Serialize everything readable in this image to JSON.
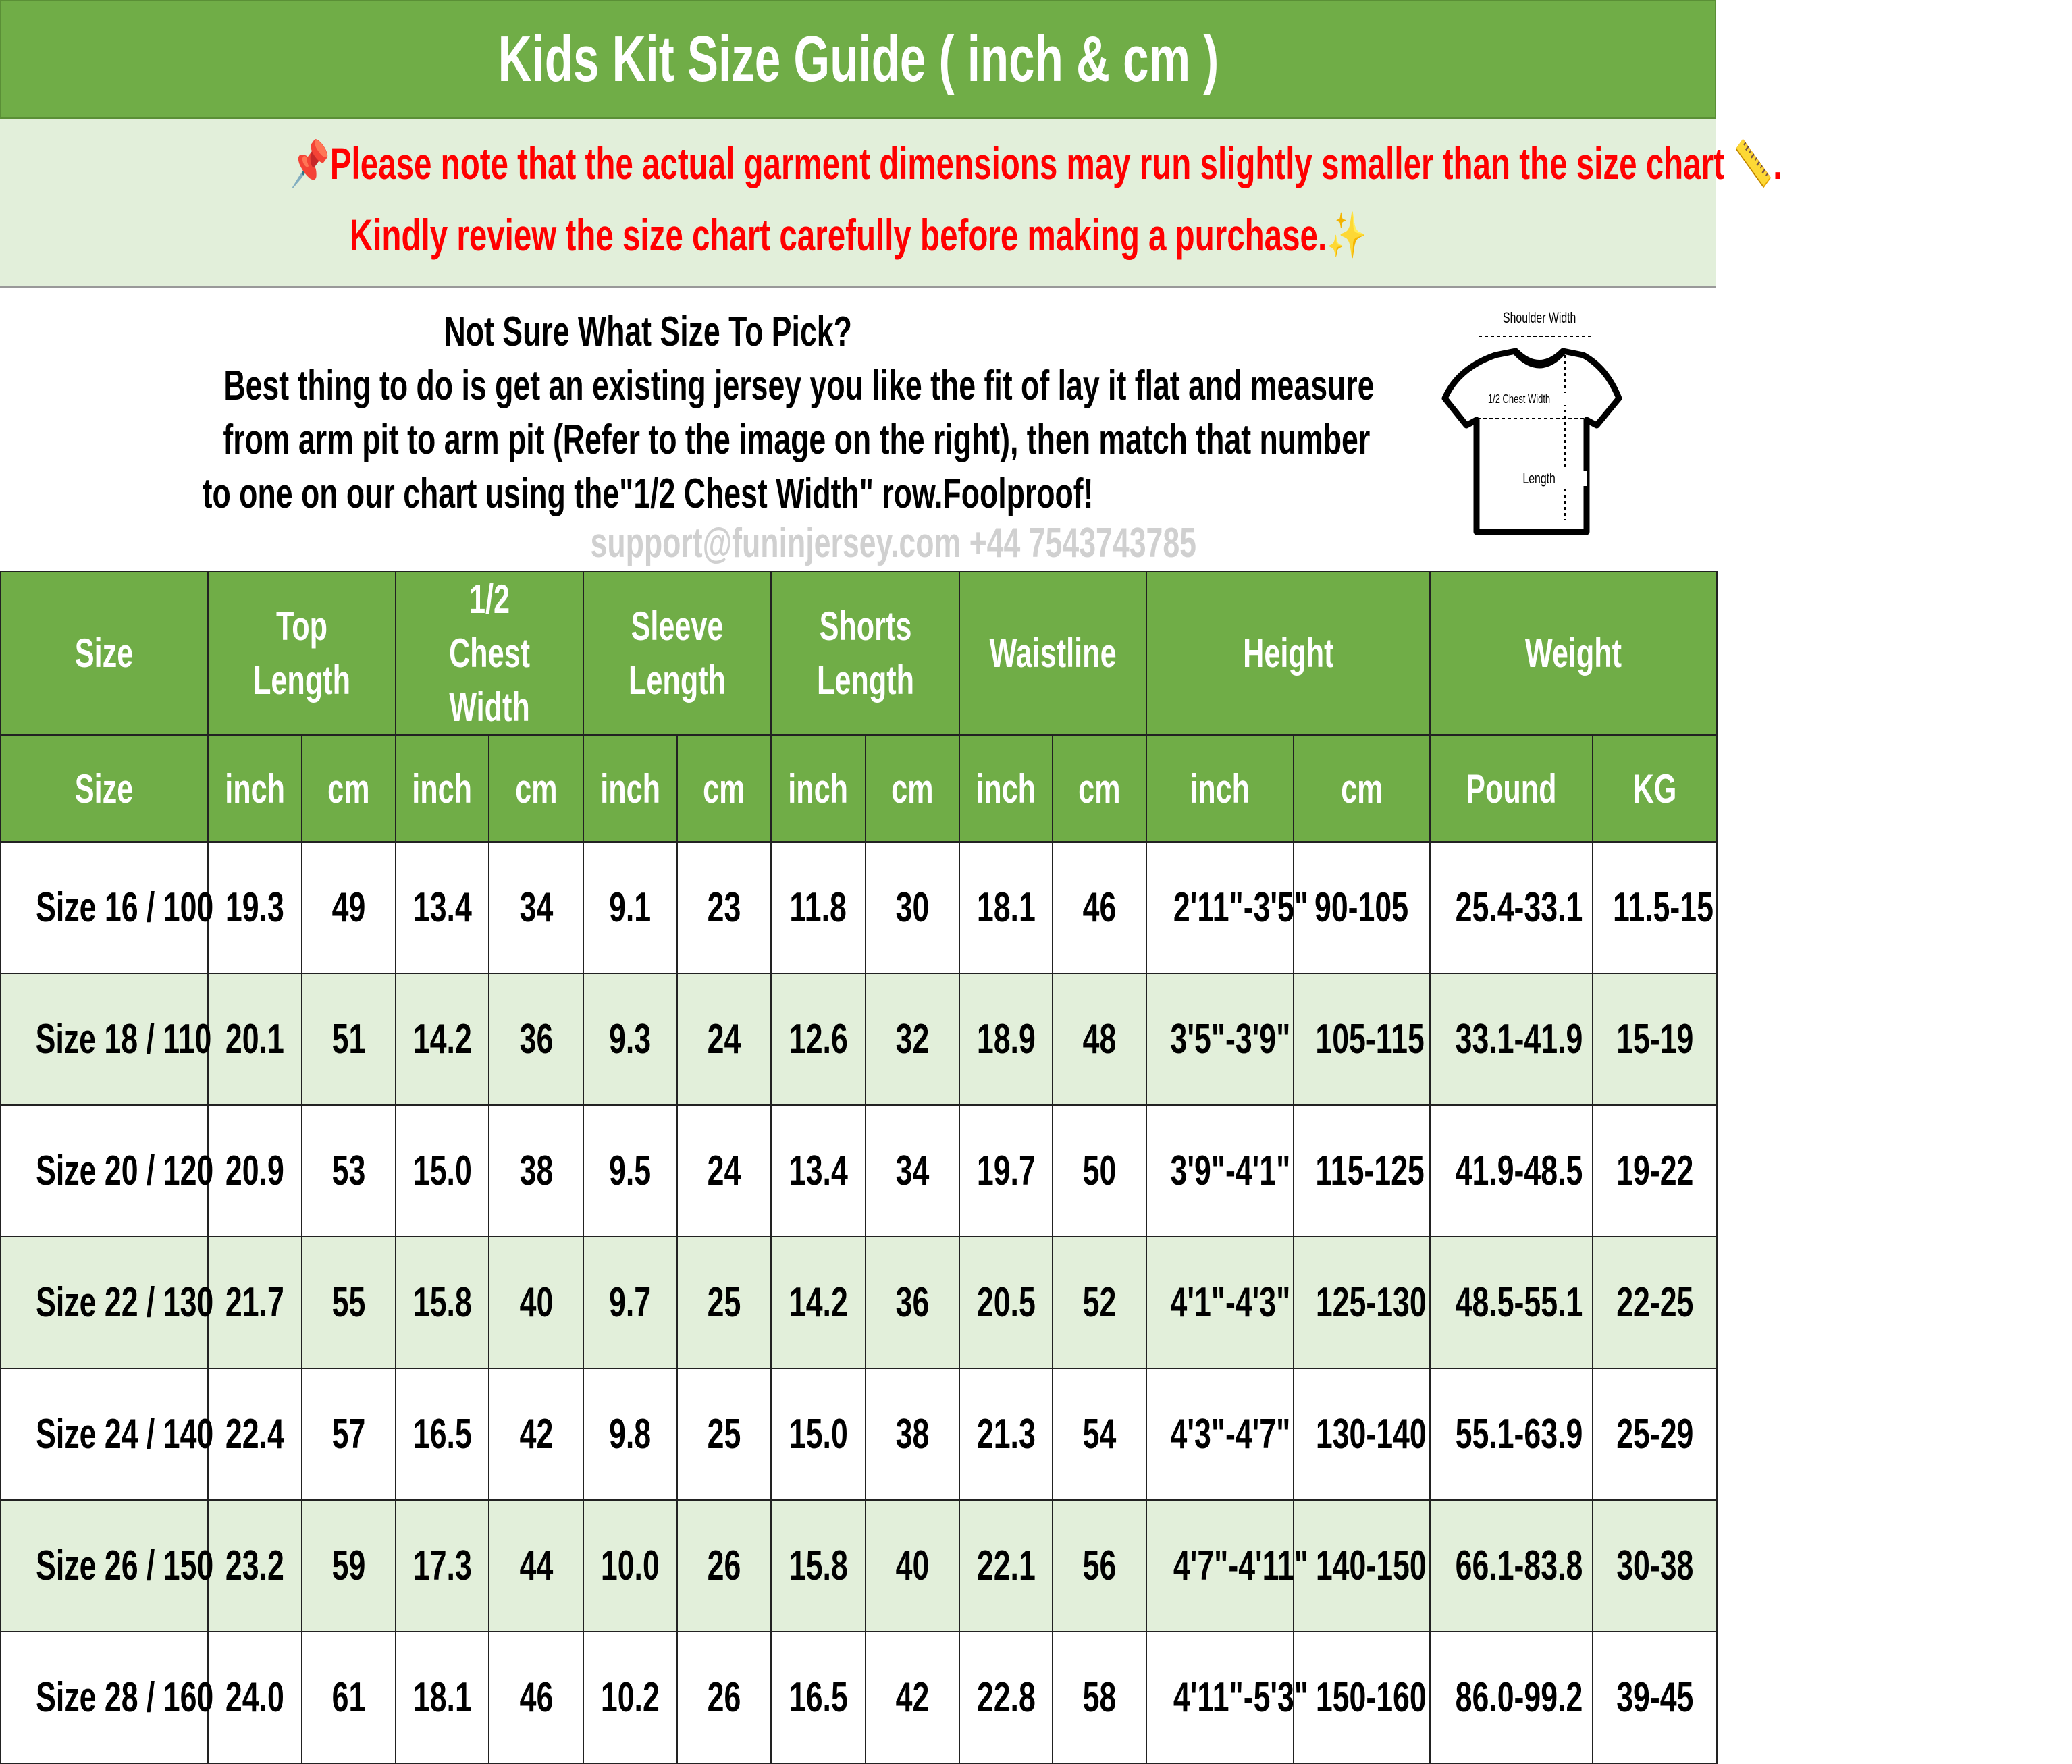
{
  "title": "Kids Kit Size Guide ( inch & cm )",
  "notice": {
    "line1": "Please note that the actual garment dimensions may run slightly smaller than the size chart",
    "line1_end": ".",
    "line2": "Kindly review the size chart carefully before making a purchase.",
    "icons": [
      "pushpin-icon",
      "ruler-icon",
      "sparkles-icon"
    ]
  },
  "info": {
    "heading": "Not Sure What Size To Pick?",
    "line1": "Best thing to do is get an existing jersey you like the fit of lay it flat and measure",
    "line2": "from arm pit to arm pit (Refer to the image on the right), then match that number",
    "line3": "to one on our chart using the\"1/2 Chest Width\" row.Foolproof!"
  },
  "diagram": {
    "shoulder": "Shoulder Width",
    "chest": "1/2 Chest Width",
    "length": "Length"
  },
  "watermark": "support@funinjersey.com +44 7543743785",
  "colors": {
    "header_green": "#70ad47",
    "alt_row": "#e2efda",
    "notice_red": "#ff0000"
  },
  "table": {
    "groups": [
      {
        "label": "Size",
        "span": 1
      },
      {
        "label": "Top Length",
        "span": 2
      },
      {
        "label": "1/2 Chest Width",
        "span": 2
      },
      {
        "label": "Sleeve Length",
        "span": 2
      },
      {
        "label": "Shorts Length",
        "span": 2
      },
      {
        "label": "Waistline",
        "span": 2
      },
      {
        "label": "Height",
        "span": 2
      },
      {
        "label": "Weight",
        "span": 2
      }
    ],
    "units": [
      "Size",
      "inch",
      "cm",
      "inch",
      "cm",
      "inch",
      "cm",
      "inch",
      "cm",
      "inch",
      "cm",
      "inch",
      "cm",
      "Pound",
      "KG"
    ],
    "rows": [
      [
        "Size 16 / 100",
        "19.3",
        "49",
        "13.4",
        "34",
        "9.1",
        "23",
        "11.8",
        "30",
        "18.1",
        "46",
        "2'11\"-3'5\"",
        "90-105",
        "25.4-33.1",
        "11.5-15"
      ],
      [
        "Size 18 / 110",
        "20.1",
        "51",
        "14.2",
        "36",
        "9.3",
        "24",
        "12.6",
        "32",
        "18.9",
        "48",
        "3'5\"-3'9\"",
        "105-115",
        "33.1-41.9",
        "15-19"
      ],
      [
        "Size 20 / 120",
        "20.9",
        "53",
        "15.0",
        "38",
        "9.5",
        "24",
        "13.4",
        "34",
        "19.7",
        "50",
        "3'9\"-4'1\"",
        "115-125",
        "41.9-48.5",
        "19-22"
      ],
      [
        "Size 22 / 130",
        "21.7",
        "55",
        "15.8",
        "40",
        "9.7",
        "25",
        "14.2",
        "36",
        "20.5",
        "52",
        "4'1\"-4'3\"",
        "125-130",
        "48.5-55.1",
        "22-25"
      ],
      [
        "Size 24 / 140",
        "22.4",
        "57",
        "16.5",
        "42",
        "9.8",
        "25",
        "15.0",
        "38",
        "21.3",
        "54",
        "4'3\"-4'7\"",
        "130-140",
        "55.1-63.9",
        "25-29"
      ],
      [
        "Size 26 / 150",
        "23.2",
        "59",
        "17.3",
        "44",
        "10.0",
        "26",
        "15.8",
        "40",
        "22.1",
        "56",
        "4'7\"-4'11\"",
        "140-150",
        "66.1-83.8",
        "30-38"
      ],
      [
        "Size 28 / 160",
        "24.0",
        "61",
        "18.1",
        "46",
        "10.2",
        "26",
        "16.5",
        "42",
        "22.8",
        "58",
        "4'11\"-5'3\"",
        "150-160",
        "86.0-99.2",
        "39-45"
      ]
    ]
  }
}
